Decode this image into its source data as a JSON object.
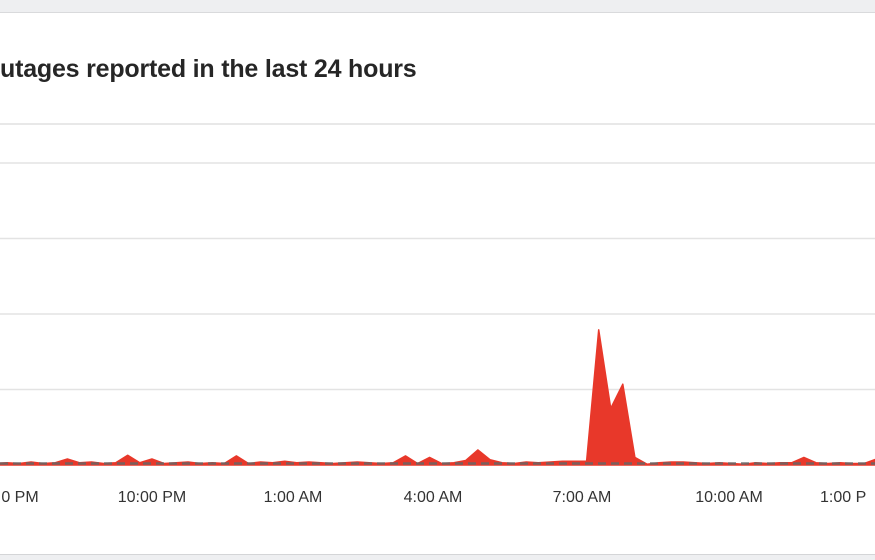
{
  "chart_data": {
    "type": "area",
    "title": "utages reported in the last 24 hours",
    "xlabel": "",
    "ylabel": "",
    "x_start": "6:45 PM",
    "x_interval_minutes": 15,
    "x_tick_labels": [
      "0 PM",
      "10:00 PM",
      "1:00 AM",
      "4:00 AM",
      "7:00 AM",
      "10:00 AM",
      "1:00 P"
    ],
    "ylim": [
      0,
      4
    ],
    "grid": true,
    "series": [
      {
        "color": "#e8382a",
        "values": [
          0.02,
          0.03,
          0.02,
          0.04,
          0.02,
          0.03,
          0.08,
          0.03,
          0.04,
          0.02,
          0.03,
          0.13,
          0.03,
          0.08,
          0.02,
          0.03,
          0.04,
          0.02,
          0.03,
          0.02,
          0.12,
          0.02,
          0.04,
          0.03,
          0.05,
          0.03,
          0.04,
          0.03,
          0.02,
          0.03,
          0.04,
          0.03,
          0.02,
          0.03,
          0.12,
          0.02,
          0.1,
          0.02,
          0.03,
          0.06,
          0.2,
          0.07,
          0.03,
          0.02,
          0.04,
          0.03,
          0.04,
          0.05,
          0.05,
          0.05,
          1.79,
          0.75,
          1.07,
          0.1,
          0.01,
          0.03,
          0.04,
          0.04,
          0.03,
          0.02,
          0.03,
          0.02,
          0.01,
          0.03,
          0.02,
          0.03,
          0.03,
          0.1,
          0.03,
          0.02,
          0.03,
          0.02,
          0.02,
          0.08,
          0.03
        ]
      },
      {
        "color": "#666666",
        "style": "dashed",
        "values_constant": 0.02
      }
    ]
  }
}
